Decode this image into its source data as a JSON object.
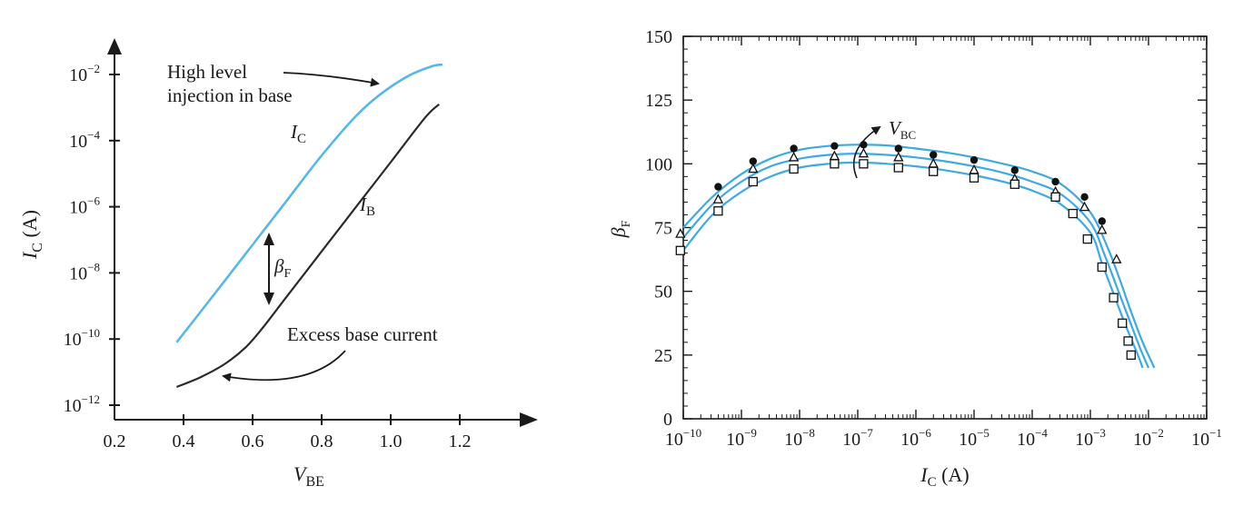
{
  "colors": {
    "ic_curve": "#59b7e6",
    "ib_curve": "#2a2a2a",
    "axis": "#1a1a1a",
    "fit_curves": "#3fa9e0"
  },
  "chart_data": [
    {
      "type": "line",
      "title": "",
      "xlabel": {
        "base": "V",
        "sub": "BE"
      },
      "ylabel": {
        "base": "I",
        "sub": "C",
        "rest": " (A)"
      },
      "x_ticks": [
        "0.2",
        "0.4",
        "0.6",
        "0.8",
        "1.0",
        "1.2"
      ],
      "y_ticks": [
        {
          "base": "10",
          "exp": "−2"
        },
        {
          "base": "10",
          "exp": "−4"
        },
        {
          "base": "10",
          "exp": "−6"
        },
        {
          "base": "10",
          "exp": "−8"
        },
        {
          "base": "10",
          "exp": "−10"
        },
        {
          "base": "10",
          "exp": "−12"
        }
      ],
      "xlim": [
        0.2,
        1.4
      ],
      "ylim_log10": [
        -12,
        -1
      ],
      "series": [
        {
          "name": "IC",
          "label": {
            "base": "I",
            "sub": "C"
          },
          "x": [
            0.38,
            0.5,
            0.6,
            0.7,
            0.8,
            0.9,
            0.97,
            1.05,
            1.12,
            1.15
          ],
          "log10y": [
            -10.1,
            -8.5,
            -7.15,
            -5.8,
            -4.45,
            -3.25,
            -2.6,
            -2.05,
            -1.75,
            -1.7
          ]
        },
        {
          "name": "IB",
          "label": {
            "base": "I",
            "sub": "B"
          },
          "x": [
            0.38,
            0.45,
            0.52,
            0.58,
            0.63,
            0.7,
            0.8,
            0.9,
            1.0,
            1.1,
            1.14
          ],
          "log10y": [
            -11.45,
            -11.15,
            -10.75,
            -10.25,
            -9.65,
            -8.7,
            -7.35,
            -6.0,
            -4.65,
            -3.3,
            -2.9
          ]
        }
      ],
      "annotations": {
        "high_level_line1": "High level",
        "high_level_line2": "injection in base",
        "beta": {
          "base": "β",
          "sub": "F"
        },
        "excess": "Excess base current"
      }
    },
    {
      "type": "line+scatter",
      "title": "",
      "xlabel": {
        "base": "I",
        "sub": "C",
        "rest": " (A)"
      },
      "ylabel": {
        "base": "β",
        "sub": "F"
      },
      "x_ticks": [
        {
          "base": "10",
          "exp": "−10"
        },
        {
          "base": "10",
          "exp": "−9"
        },
        {
          "base": "10",
          "exp": "−8"
        },
        {
          "base": "10",
          "exp": "−7"
        },
        {
          "base": "10",
          "exp": "−6"
        },
        {
          "base": "10",
          "exp": "−5"
        },
        {
          "base": "10",
          "exp": "−4"
        },
        {
          "base": "10",
          "exp": "−3"
        },
        {
          "base": "10",
          "exp": "−2"
        },
        {
          "base": "10",
          "exp": "−1"
        }
      ],
      "y_ticks": [
        "0",
        "25",
        "50",
        "75",
        "100",
        "125",
        "150"
      ],
      "xlim_log10": [
        -10,
        -1
      ],
      "ylim": [
        0,
        150
      ],
      "vbc_label": {
        "base": "V",
        "sub": "BC"
      },
      "fit_curves": [
        {
          "name": "curve-1",
          "log10x": [
            -10,
            -9.5,
            -9,
            -8.5,
            -8,
            -7.5,
            -7,
            -6.5,
            -6,
            -5.5,
            -5,
            -4.5,
            -4,
            -3.5,
            -3,
            -2.7,
            -2.5,
            -2.3,
            -2.1,
            -1.9
          ],
          "y": [
            75,
            87,
            96,
            102,
            105.5,
            107,
            107.5,
            107.2,
            106,
            104.5,
            102.5,
            100,
            97,
            92,
            81,
            67,
            55,
            42,
            30,
            20
          ]
        },
        {
          "name": "curve-2",
          "log10x": [
            -10,
            -9.5,
            -9,
            -8.5,
            -8,
            -7.5,
            -7,
            -6.5,
            -6,
            -5.5,
            -5,
            -4.5,
            -4,
            -3.5,
            -3,
            -2.75,
            -2.55,
            -2.35,
            -2.15,
            -2.0
          ],
          "y": [
            71,
            84,
            93,
            99,
            102,
            103.5,
            104,
            103.5,
            102.5,
            101,
            99,
            96.5,
            93,
            88,
            77,
            64,
            52,
            40,
            28,
            20
          ]
        },
        {
          "name": "curve-3",
          "log10x": [
            -10,
            -9.5,
            -9,
            -8.5,
            -8,
            -7.5,
            -7,
            -6.5,
            -6,
            -5.5,
            -5,
            -4.5,
            -4,
            -3.5,
            -3,
            -2.8,
            -2.6,
            -2.4,
            -2.2,
            -2.1
          ],
          "y": [
            66,
            80,
            89,
            95,
            98.5,
            100,
            100.5,
            100,
            99,
            97.5,
            95.5,
            93,
            89.5,
            84,
            73,
            61,
            49,
            37,
            26,
            20
          ]
        }
      ],
      "markers": {
        "filled_circles": {
          "log10x": [
            -9.4,
            -8.8,
            -8.1,
            -7.4,
            -6.9,
            -6.3,
            -5.7,
            -5.0,
            -4.3,
            -3.6,
            -3.1,
            -2.8
          ],
          "y": [
            91,
            101,
            106,
            107,
            107.5,
            106,
            103.5,
            101.5,
            97.5,
            93,
            87,
            77.5
          ]
        },
        "triangles": {
          "log10x": [
            -10.05,
            -9.4,
            -8.8,
            -8.1,
            -7.4,
            -6.9,
            -6.3,
            -5.7,
            -5.0,
            -4.3,
            -3.6,
            -3.1,
            -2.8,
            -2.55
          ],
          "y": [
            72.5,
            86,
            98,
            102.5,
            103,
            104,
            102.5,
            100,
            97.5,
            94,
            89,
            83,
            74,
            62.5
          ]
        },
        "squares": {
          "log10x": [
            -10.05,
            -9.4,
            -8.8,
            -8.1,
            -7.4,
            -6.9,
            -6.3,
            -5.7,
            -5.0,
            -4.3,
            -3.6,
            -3.3,
            -3.05,
            -2.8,
            -2.6,
            -2.45,
            -2.35,
            -2.3
          ],
          "y": [
            66,
            81.5,
            93,
            98,
            100,
            100,
            98.5,
            97,
            94.5,
            92,
            87,
            80.5,
            70.5,
            59.5,
            47.5,
            37.5,
            30.5,
            25
          ]
        }
      }
    }
  ]
}
